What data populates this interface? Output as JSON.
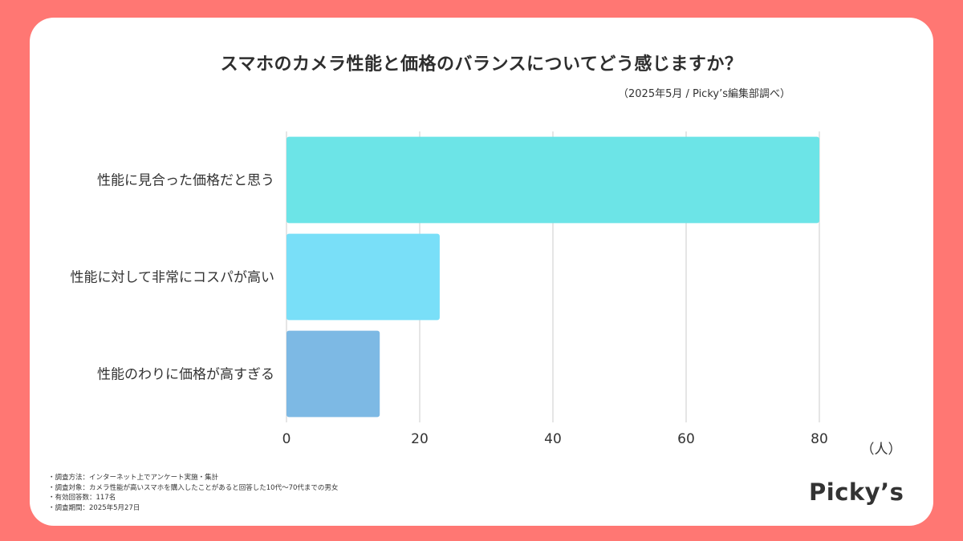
{
  "header": {
    "title": "スマホのカメラ性能と価格のバランスについてどう感じますか？",
    "source": "（2025年5月 / Picky’s編集部調べ）"
  },
  "chart_data": {
    "type": "bar",
    "orientation": "horizontal",
    "title": "スマホのカメラ性能と価格のバランスについてどう感じますか？",
    "categories": [
      "性能に見合った価格だと思う",
      "性能に対して非常にコスパが高い",
      "性能のわりに価格が高すぎる"
    ],
    "values": [
      80,
      23,
      14
    ],
    "colors": [
      "#6ce4e7",
      "#79dff8",
      "#7db9e4"
    ],
    "xlim": [
      0,
      80
    ],
    "xticks": [
      "0",
      "20",
      "40",
      "60",
      "80"
    ],
    "xlabel": "（人）",
    "grid": true
  },
  "notes": [
    "・調査方法：インターネット上でアンケート実施・集計",
    "・調査対象：カメラ性能が高いスマホを購入したことがあると回答した10代〜70代までの男女",
    "・有効回答数：117名",
    "・調査期間：2025年5月27日"
  ],
  "brand": {
    "logo_text": "Picky’s"
  }
}
